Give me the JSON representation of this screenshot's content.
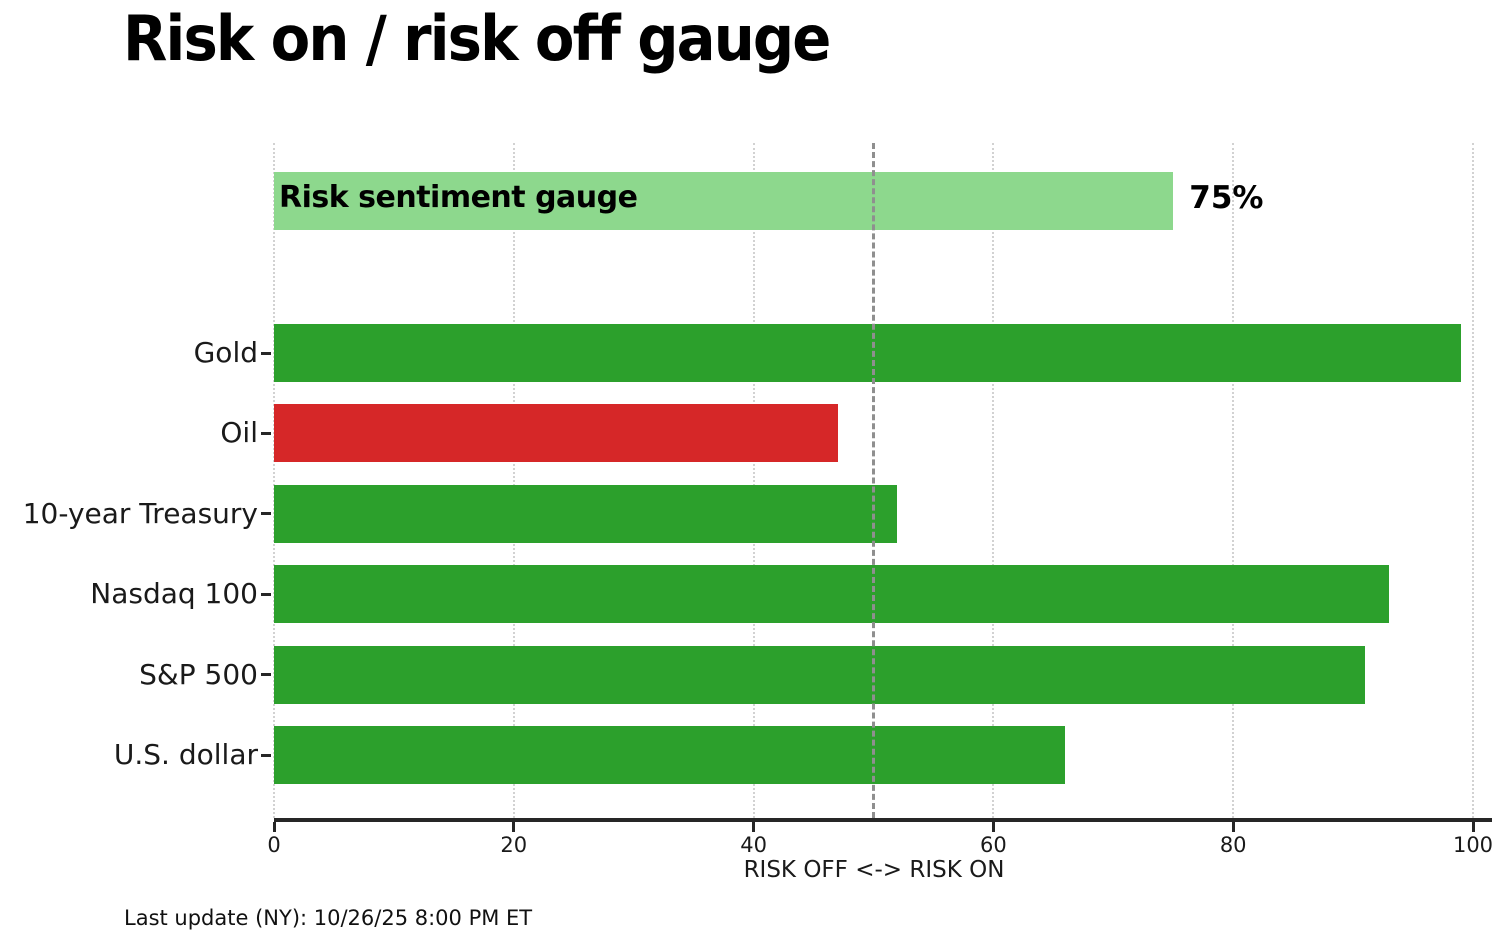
{
  "title": "Risk on / risk off gauge",
  "footer": "Last update (NY): 10/26/25 8:00 PM ET",
  "colors": {
    "risk_on": "#2ca02c",
    "risk_off": "#d62728",
    "gauge": "#8dd88d",
    "grid": "#d2d2d2",
    "reference_line": "#8f8f8f",
    "axis": "#262626"
  },
  "chart_data": {
    "type": "bar",
    "orientation": "horizontal",
    "title": "Risk on / risk off gauge",
    "xlabel": "RISK OFF <-> RISK ON",
    "xlim": [
      0,
      100
    ],
    "xticks": [
      0,
      20,
      40,
      60,
      80,
      100
    ],
    "grid": true,
    "reference_line_x": 50,
    "gauge": {
      "label": "Risk sentiment gauge",
      "value": 75,
      "value_label": "75%",
      "color_key": "gauge"
    },
    "bars": [
      {
        "label": "Gold",
        "value": 99,
        "sentiment": "risk_on"
      },
      {
        "label": "Oil",
        "value": 47,
        "sentiment": "risk_off"
      },
      {
        "label": "10-year Treasury",
        "value": 52,
        "sentiment": "risk_on"
      },
      {
        "label": "Nasdaq 100",
        "value": 93,
        "sentiment": "risk_on"
      },
      {
        "label": "S&P 500",
        "value": 91,
        "sentiment": "risk_on"
      },
      {
        "label": "U.S. dollar",
        "value": 66,
        "sentiment": "risk_on"
      }
    ]
  }
}
